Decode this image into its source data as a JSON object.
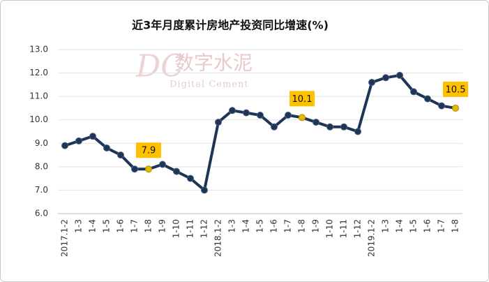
{
  "chart_data": {
    "type": "line",
    "title": "近3年月度累计房地产投资同比增速(%)",
    "watermark": {
      "logo": "DC",
      "name": "数字水泥",
      "name_en": "Digital Cement"
    },
    "categories": [
      "2017.1-2",
      "1-3",
      "1-4",
      "1-5",
      "1-6",
      "1-7",
      "1-8",
      "1-9",
      "1-10",
      "1-11",
      "1-12",
      "2018.1-2",
      "1-3",
      "1-4",
      "1-5",
      "1-6",
      "1-7",
      "1-8",
      "1-9",
      "1-10",
      "1-11",
      "1-12",
      "2019.1-2",
      "1-3",
      "1-4",
      "1-5",
      "1-6",
      "1-7",
      "1-8"
    ],
    "series": [
      {
        "color": "#1f3556",
        "highlight_color": "#e6b800",
        "values": [
          8.9,
          9.1,
          9.3,
          8.8,
          8.5,
          7.9,
          7.9,
          8.1,
          7.8,
          7.5,
          7.0,
          9.9,
          10.4,
          10.3,
          10.2,
          9.7,
          10.2,
          10.1,
          9.9,
          9.7,
          9.7,
          9.5,
          11.6,
          11.8,
          11.9,
          11.2,
          10.9,
          10.6,
          10.5
        ],
        "value_labels": [
          null,
          null,
          null,
          null,
          null,
          null,
          "7.9",
          null,
          null,
          null,
          null,
          null,
          null,
          null,
          null,
          null,
          null,
          "10.1",
          null,
          null,
          null,
          null,
          null,
          null,
          null,
          null,
          null,
          null,
          "10.5"
        ],
        "label_background": "#ffc000"
      }
    ],
    "ylim": [
      6,
      13
    ],
    "yticks": [
      {
        "value": 6,
        "label": "6.0"
      },
      {
        "value": 7,
        "label": "7.0"
      },
      {
        "value": 8,
        "label": "8.0"
      },
      {
        "value": 9,
        "label": "9.0"
      },
      {
        "value": 10,
        "label": "10.0"
      },
      {
        "value": 11,
        "label": "11.0"
      },
      {
        "value": 12,
        "label": "12.0"
      },
      {
        "value": 13,
        "label": "13.0"
      }
    ],
    "grid": true
  }
}
